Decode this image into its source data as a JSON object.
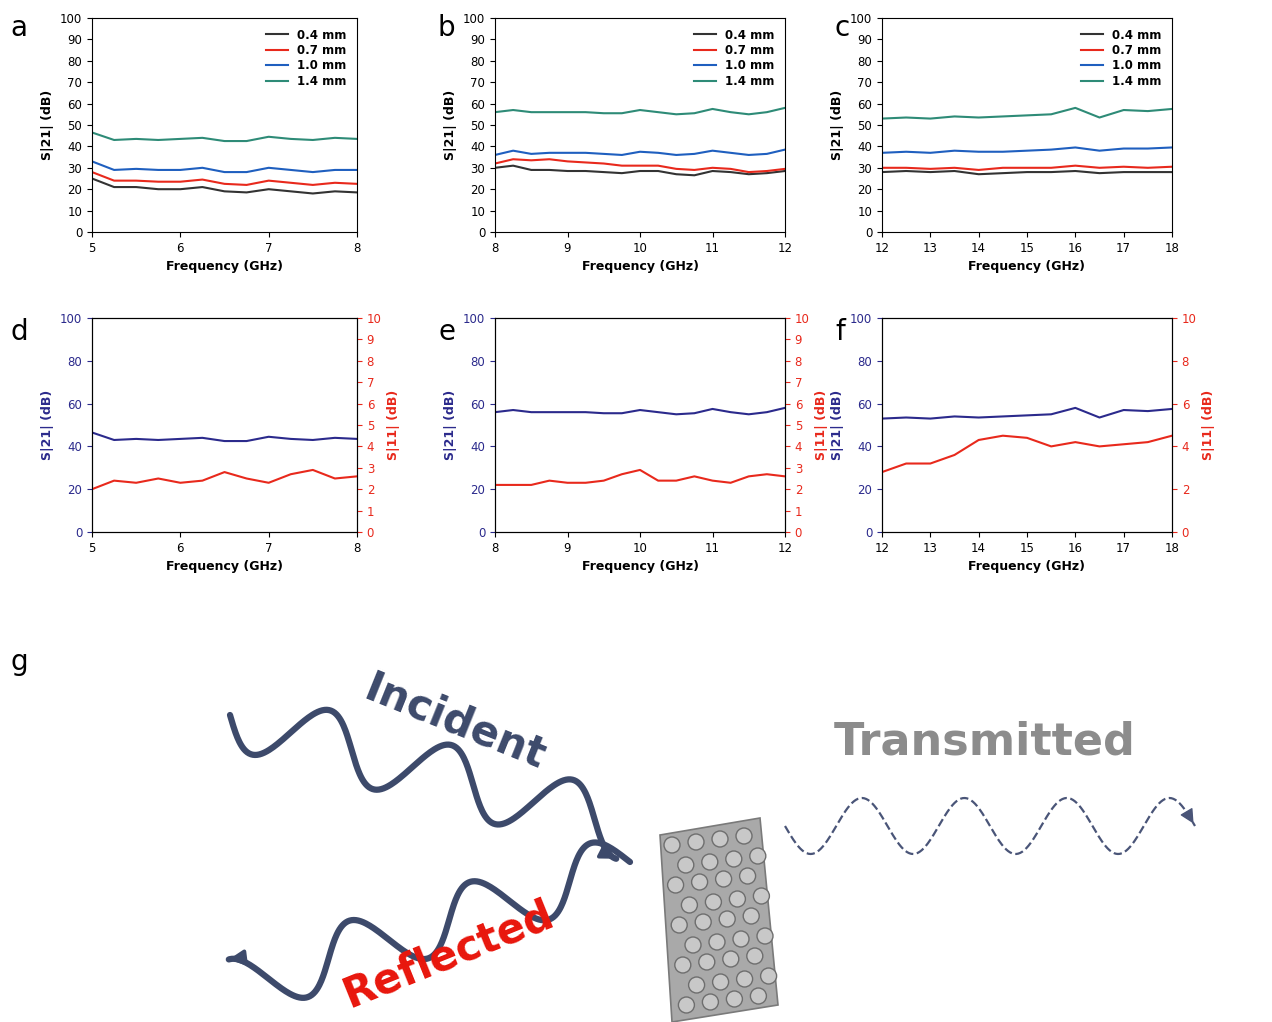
{
  "chart_data": [
    {
      "type": "line",
      "title": "a",
      "x_label": "Frequency (GHz)",
      "y_label": "S|21| (dB)",
      "x": [
        5,
        5.25,
        5.5,
        5.75,
        6,
        6.25,
        6.5,
        6.75,
        7,
        7.25,
        7.5,
        7.75,
        8
      ],
      "series": [
        {
          "name": "0.4 mm",
          "color": "#333333",
          "values": [
            25,
            21,
            21,
            20,
            20,
            21,
            19,
            18.5,
            20,
            19,
            18,
            19,
            18.5
          ]
        },
        {
          "name": "0.7 mm",
          "color": "#e8291c",
          "values": [
            28,
            24,
            24,
            23.5,
            23.5,
            24.5,
            22.5,
            22,
            24,
            23,
            22,
            23,
            22.5
          ]
        },
        {
          "name": "1.0 mm",
          "color": "#1f5fbf",
          "values": [
            33,
            29,
            29.5,
            29,
            29,
            30,
            28,
            28,
            30,
            29,
            28,
            29,
            29
          ]
        },
        {
          "name": "1.4 mm",
          "color": "#2e8b77",
          "values": [
            46.5,
            43,
            43.5,
            43,
            43.5,
            44,
            42.5,
            42.5,
            44.5,
            43.5,
            43,
            44,
            43.5
          ]
        }
      ],
      "xlim": [
        5,
        8
      ],
      "xticks": [
        5,
        6,
        7,
        8
      ],
      "ylim": [
        0,
        100
      ],
      "yticks": [
        0,
        10,
        20,
        30,
        40,
        50,
        60,
        70,
        80,
        90,
        100
      ],
      "legend": "upper right"
    },
    {
      "type": "line",
      "title": "b",
      "x_label": "Frequency (GHz)",
      "y_label": "S|21| (dB)",
      "x": [
        8,
        8.25,
        8.5,
        8.75,
        9,
        9.25,
        9.5,
        9.75,
        10,
        10.25,
        10.5,
        10.75,
        11,
        11.25,
        11.5,
        11.75,
        12
      ],
      "series": [
        {
          "name": "0.4 mm",
          "color": "#333333",
          "values": [
            30,
            31,
            29,
            29,
            28.5,
            28.5,
            28,
            27.5,
            28.5,
            28.5,
            27,
            26.5,
            28.5,
            28,
            27,
            27.5,
            28.5
          ]
        },
        {
          "name": "0.7 mm",
          "color": "#e8291c",
          "values": [
            32,
            34,
            33.5,
            34,
            33,
            32.5,
            32,
            31,
            31,
            31,
            29.5,
            29,
            30,
            29.5,
            28,
            28.5,
            29.5
          ]
        },
        {
          "name": "1.0 mm",
          "color": "#1f5fbf",
          "values": [
            36,
            38,
            36.5,
            37,
            37,
            37,
            36.5,
            36,
            37.5,
            37,
            36,
            36.5,
            38,
            37,
            36,
            36.5,
            38.5
          ]
        },
        {
          "name": "1.4 mm",
          "color": "#2e8b77",
          "values": [
            56,
            57,
            56,
            56,
            56,
            56,
            55.5,
            55.5,
            57,
            56,
            55,
            55.5,
            57.5,
            56,
            55,
            56,
            58
          ]
        }
      ],
      "xlim": [
        8,
        12
      ],
      "xticks": [
        8,
        9,
        10,
        11,
        12
      ],
      "ylim": [
        0,
        100
      ],
      "yticks": [
        0,
        10,
        20,
        30,
        40,
        50,
        60,
        70,
        80,
        90,
        100
      ],
      "legend": "upper right"
    },
    {
      "type": "line",
      "title": "c",
      "x_label": "Frequency (GHz)",
      "y_label": "S|21| (dB)",
      "x": [
        12,
        12.5,
        13,
        13.5,
        14,
        14.5,
        15,
        15.5,
        16,
        16.5,
        17,
        17.5,
        18
      ],
      "series": [
        {
          "name": "0.4 mm",
          "color": "#333333",
          "values": [
            28,
            28.5,
            28,
            28.5,
            27,
            27.5,
            28,
            28,
            28.5,
            27.5,
            28,
            28,
            28
          ]
        },
        {
          "name": "0.7 mm",
          "color": "#e8291c",
          "values": [
            30,
            30,
            29.5,
            30,
            29,
            30,
            30,
            30,
            31,
            30,
            30.5,
            30,
            30.5
          ]
        },
        {
          "name": "1.0 mm",
          "color": "#1f5fbf",
          "values": [
            37,
            37.5,
            37,
            38,
            37.5,
            37.5,
            38,
            38.5,
            39.5,
            38,
            39,
            39,
            39.5
          ]
        },
        {
          "name": "1.4 mm",
          "color": "#2e8b77",
          "values": [
            53,
            53.5,
            53,
            54,
            53.5,
            54,
            54.5,
            55,
            58,
            53.5,
            57,
            56.5,
            57.5
          ]
        }
      ],
      "xlim": [
        12,
        18
      ],
      "xticks": [
        12,
        13,
        14,
        15,
        16,
        17,
        18
      ],
      "ylim": [
        0,
        100
      ],
      "yticks": [
        0,
        10,
        20,
        30,
        40,
        50,
        60,
        70,
        80,
        90,
        100
      ],
      "legend": "upper right"
    },
    {
      "type": "line",
      "title": "d",
      "x_label": "Frequency (GHz)",
      "y_label": "S|21| (dB)",
      "y2_label": "S|11| (dB)",
      "x": [
        5,
        5.25,
        5.5,
        5.75,
        6,
        6.25,
        6.5,
        6.75,
        7,
        7.25,
        7.5,
        7.75,
        8
      ],
      "series": [
        {
          "color": "#2b2a8c",
          "values": [
            46.5,
            43,
            43.5,
            43,
            43.5,
            44,
            42.5,
            42.5,
            44.5,
            43.5,
            43,
            44,
            43.5
          ]
        },
        {
          "color": "#e8291c",
          "axis": "y2",
          "values": [
            2.0,
            2.4,
            2.3,
            2.5,
            2.3,
            2.4,
            2.8,
            2.5,
            2.3,
            2.7,
            2.9,
            2.5,
            2.6
          ]
        }
      ],
      "xlim": [
        5,
        8
      ],
      "xticks": [
        5,
        6,
        7,
        8
      ],
      "ylim": [
        0,
        100
      ],
      "yticks": [
        0,
        20,
        40,
        60,
        80,
        100
      ],
      "y2lim": [
        0,
        10
      ],
      "y2ticks": [
        0,
        1,
        2,
        3,
        4,
        5,
        6,
        7,
        8,
        9,
        10
      ]
    },
    {
      "type": "line",
      "title": "e",
      "x_label": "Frequency (GHz)",
      "y_label": "S|21| (dB)",
      "y2_label": "S|11| (dB)",
      "x": [
        8,
        8.25,
        8.5,
        8.75,
        9,
        9.25,
        9.5,
        9.75,
        10,
        10.25,
        10.5,
        10.75,
        11,
        11.25,
        11.5,
        11.75,
        12
      ],
      "series": [
        {
          "color": "#2b2a8c",
          "values": [
            56,
            57,
            56,
            56,
            56,
            56,
            55.5,
            55.5,
            57,
            56,
            55,
            55.5,
            57.5,
            56,
            55,
            56,
            58
          ]
        },
        {
          "color": "#e8291c",
          "axis": "y2",
          "values": [
            2.2,
            2.2,
            2.2,
            2.4,
            2.3,
            2.3,
            2.4,
            2.7,
            2.9,
            2.4,
            2.4,
            2.6,
            2.4,
            2.3,
            2.6,
            2.7,
            2.6
          ]
        }
      ],
      "xlim": [
        8,
        12
      ],
      "xticks": [
        8,
        9,
        10,
        11,
        12
      ],
      "ylim": [
        0,
        100
      ],
      "yticks": [
        0,
        20,
        40,
        60,
        80,
        100
      ],
      "y2lim": [
        0,
        10
      ],
      "y2ticks": [
        0,
        1,
        2,
        3,
        4,
        5,
        6,
        7,
        8,
        9,
        10
      ]
    },
    {
      "type": "line",
      "title": "f",
      "x_label": "Frequency (GHz)",
      "y_label": "S|21| (dB)",
      "y2_label": "S|11| (dB)",
      "x": [
        12,
        12.5,
        13,
        13.5,
        14,
        14.5,
        15,
        15.5,
        16,
        16.5,
        17,
        17.5,
        18
      ],
      "series": [
        {
          "color": "#2b2a8c",
          "values": [
            53,
            53.5,
            53,
            54,
            53.5,
            54,
            54.5,
            55,
            58,
            53.5,
            57,
            56.5,
            57.5
          ]
        },
        {
          "color": "#e8291c",
          "axis": "y2",
          "values": [
            2.8,
            3.2,
            3.2,
            3.6,
            4.3,
            4.5,
            4.4,
            4.0,
            4.2,
            4.0,
            4.1,
            4.2,
            4.5
          ]
        }
      ],
      "xlim": [
        12,
        18
      ],
      "xticks": [
        12,
        13,
        14,
        15,
        16,
        17,
        18
      ],
      "ylim": [
        0,
        100
      ],
      "yticks": [
        0,
        20,
        40,
        60,
        80,
        100
      ],
      "y2lim": [
        0,
        10
      ],
      "y2ticks": [
        0,
        2,
        4,
        6,
        8,
        10
      ]
    }
  ],
  "diagram": {
    "title": "g",
    "incident": "Incident",
    "reflected": "Reflected",
    "transmitted": "Transmitted",
    "incident_color": "#3d4a6b",
    "reflected_color": "#e8160c",
    "transmitted_color": "#8c8c8c"
  }
}
